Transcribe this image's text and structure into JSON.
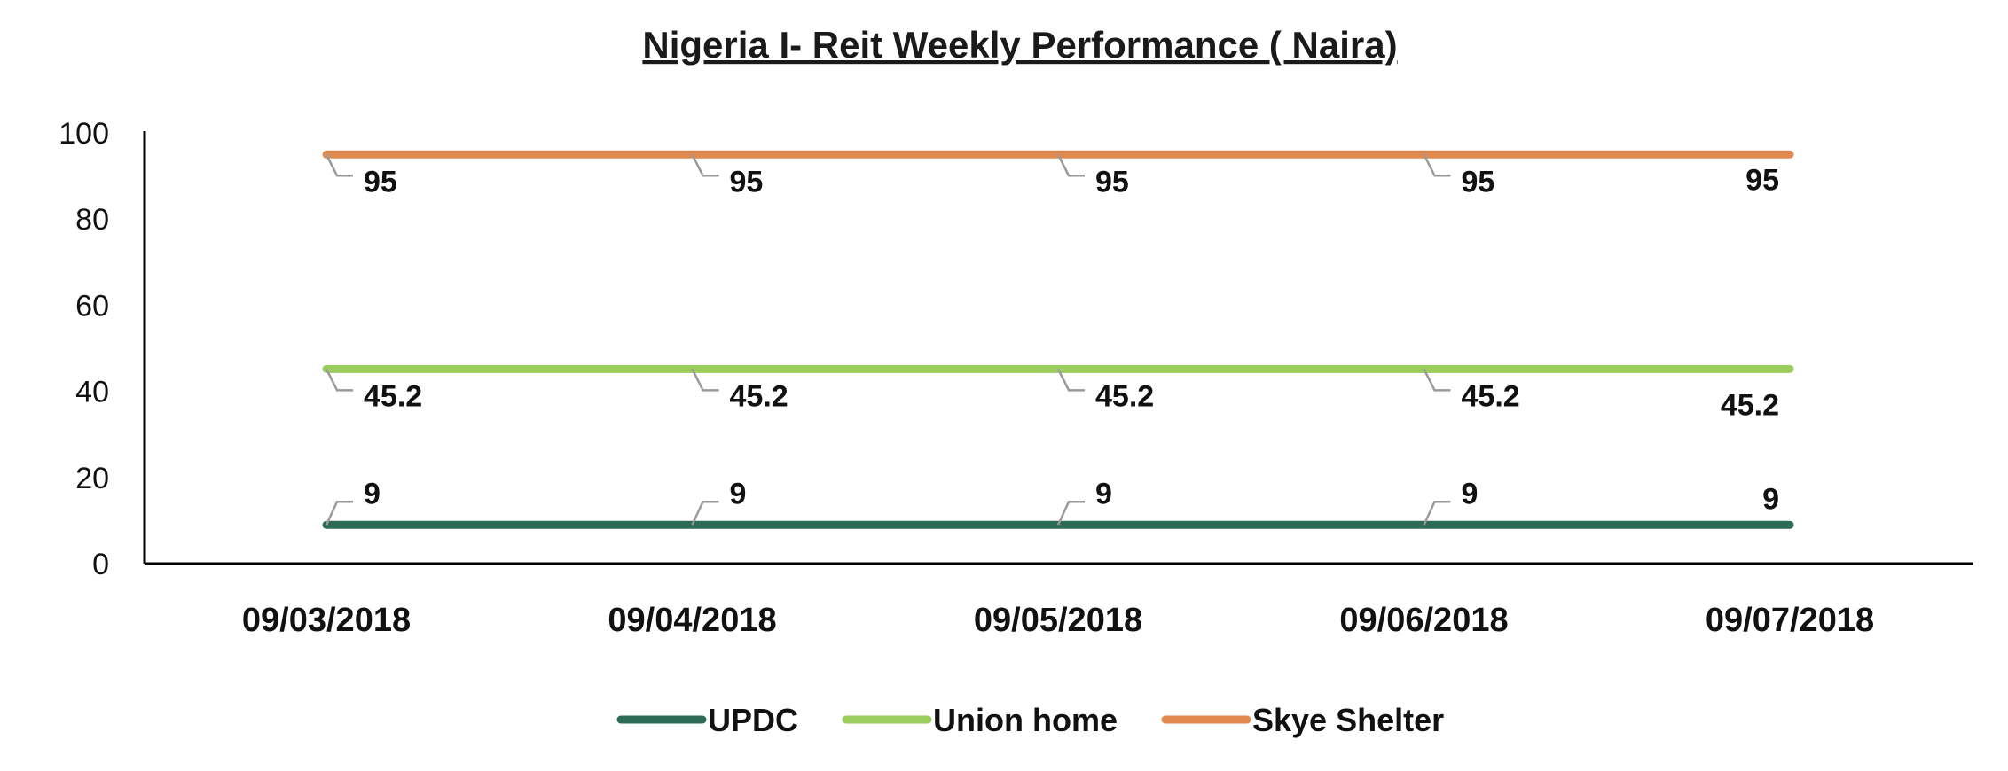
{
  "chart_data": {
    "type": "line",
    "title": "Nigeria I- Reit Weekly Performance ( Naira)",
    "categories": [
      "09/03/2018",
      "09/04/2018",
      "09/05/2018",
      "09/06/2018",
      "09/07/2018"
    ],
    "series": [
      {
        "name": "UPDC",
        "values": [
          9,
          9,
          9,
          9,
          9
        ],
        "color": "#2e6b57"
      },
      {
        "name": "Union home",
        "values": [
          45.2,
          45.2,
          45.2,
          45.2,
          45.2
        ],
        "color": "#9acd5e"
      },
      {
        "name": "Skye Shelter",
        "values": [
          95,
          95,
          95,
          95,
          95
        ],
        "color": "#e08a50"
      }
    ],
    "ylim": [
      0,
      100
    ],
    "yticks": [
      0,
      20,
      40,
      60,
      80,
      100
    ],
    "xlabel": "",
    "ylabel": "",
    "grid": false,
    "legend_position": "bottom"
  }
}
